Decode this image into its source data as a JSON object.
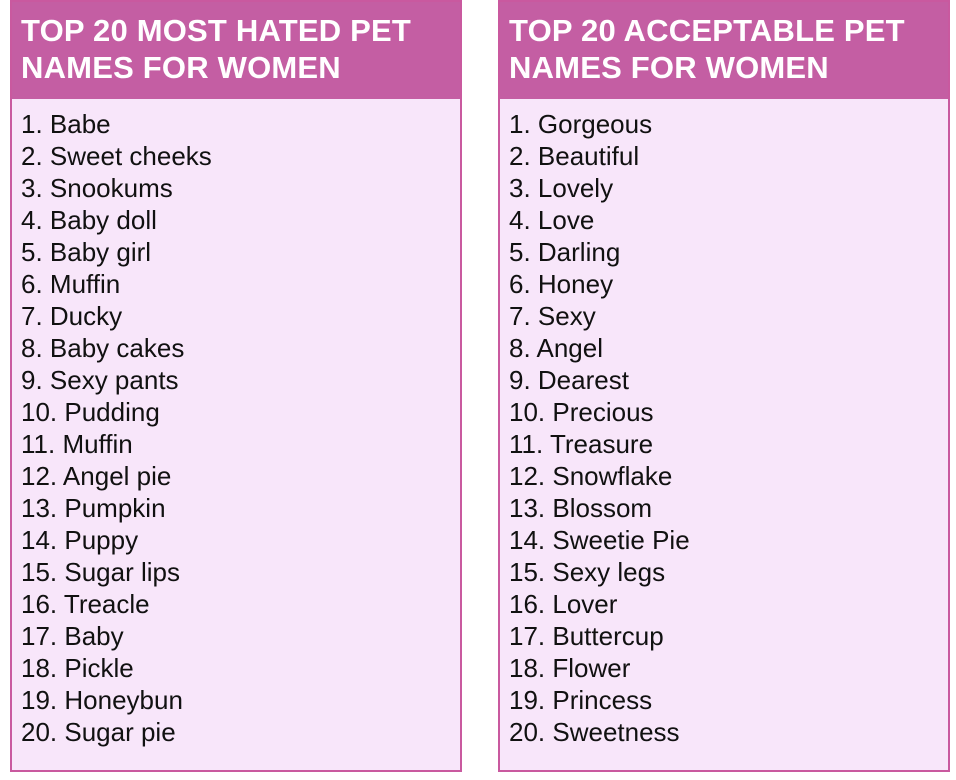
{
  "left_panel": {
    "title": "TOP 20 MOST HATED PET\nNAMES FOR WOMEN",
    "items": [
      "1. Babe",
      "2. Sweet cheeks",
      "3. Snookums",
      "4. Baby doll",
      "5. Baby girl",
      "6. Muffin",
      "7. Ducky",
      "8. Baby cakes",
      "9. Sexy pants",
      "10. Pudding",
      "11. Muffin",
      "12. Angel pie",
      "13. Pumpkin",
      "14. Puppy",
      "15. Sugar lips",
      "16. Treacle",
      "17. Baby",
      "18. Pickle",
      "19. Honeybun",
      "20. Sugar pie"
    ]
  },
  "right_panel": {
    "title": "TOP 20 ACCEPTABLE PET\nNAMES FOR WOMEN",
    "items": [
      "1. Gorgeous",
      "2. Beautiful",
      "3. Lovely",
      "4. Love",
      "5. Darling",
      "6. Honey",
      "7. Sexy",
      "8. Angel",
      "9. Dearest",
      "10. Precious",
      "11. Treasure",
      "12. Snowflake",
      "13. Blossom",
      "14. Sweetie Pie",
      "15. Sexy legs",
      "16. Lover",
      "17. Buttercup",
      "18. Flower",
      "19. Princess",
      "20. Sweetness"
    ]
  },
  "colors": {
    "header_bg": "#c45ea3",
    "panel_bg": "#f8e6fa",
    "border": "#c9599f",
    "text": "#111111"
  }
}
